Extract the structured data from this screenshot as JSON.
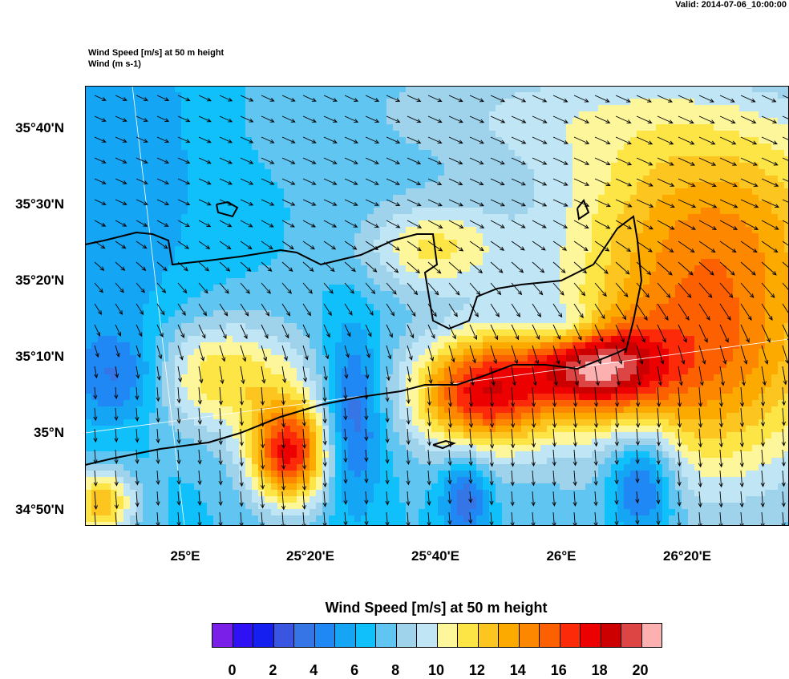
{
  "valid_time": "Valid: 2014-07-06_10:00:00",
  "title_line1": "Wind Speed [m/s] at 50 m height",
  "title_line2": "Wind   (m s-1)",
  "lat_labels": [
    "35°40'N",
    "35°30'N",
    "35°20'N",
    "35°10'N",
    "35°N",
    "34°50'N"
  ],
  "lon_labels": [
    "25°E",
    "25°20'E",
    "25°40'E",
    "26°E",
    "26°20'E"
  ],
  "colorbar": {
    "title": "Wind Speed [m/s] at 50 m height",
    "labels": [
      "0",
      "2",
      "4",
      "6",
      "8",
      "10",
      "12",
      "14",
      "16",
      "18",
      "20"
    ],
    "colors": [
      "#7a1fe8",
      "#3010f5",
      "#1520f0",
      "#3a55e0",
      "#3575e5",
      "#2088f5",
      "#15a5f5",
      "#10c0fa",
      "#60c5f0",
      "#9fd3ec",
      "#c0e5f5",
      "#fdf69a",
      "#fde545",
      "#fdc520",
      "#fdaa00",
      "#fd8800",
      "#fd6000",
      "#fd2a0a",
      "#ec0000",
      "#cc0000",
      "#dd4444",
      "#fdb0b0"
    ]
  }
}
